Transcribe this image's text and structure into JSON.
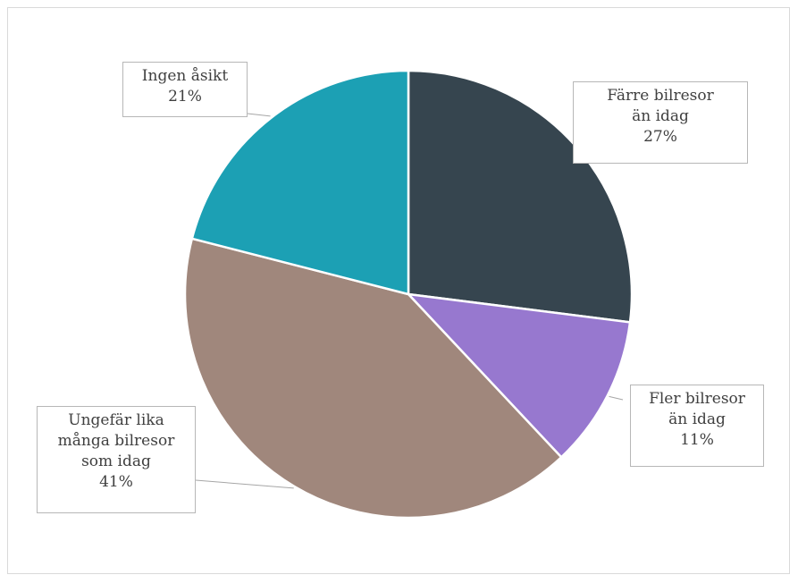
{
  "chart_data": {
    "type": "pie",
    "title": "",
    "start_angle_deg": 0,
    "direction": "clockwise",
    "slices": [
      {
        "label_lines": [
          "Färre bilresor",
          "än idag"
        ],
        "value": 27,
        "value_label": "27%",
        "color": "#36454f"
      },
      {
        "label_lines": [
          "Fler bilresor",
          "än idag"
        ],
        "value": 11,
        "value_label": "11%",
        "color": "#9778cf"
      },
      {
        "label_lines": [
          "Ungefär lika",
          "många bilresor",
          "som idag"
        ],
        "value": 41,
        "value_label": "41%",
        "color": "#a0877c"
      },
      {
        "label_lines": [
          "Ingen åsikt"
        ],
        "value": 21,
        "value_label": "21%",
        "color": "#1ca0b4"
      }
    ],
    "slice_border_color": "#ffffff",
    "callout_border_color": "#b7b7b7",
    "leader_color": "#a6a6a6",
    "text_color": "#404040"
  }
}
